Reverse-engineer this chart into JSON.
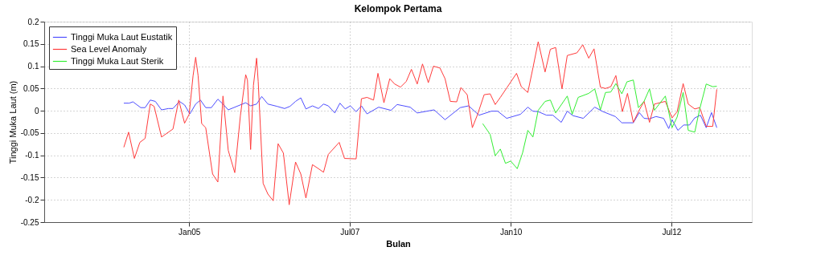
{
  "chart_data": {
    "type": "line",
    "title": "Kelompok Pertama",
    "xlabel": "Bulan",
    "ylabel": "Tinggi Muka Laut (m)",
    "xlim": [
      "2002-10-01",
      "2013-10-01"
    ],
    "xticks": [
      {
        "value": "2005-01-01",
        "label": "Jan05"
      },
      {
        "value": "2007-07-01",
        "label": "Jul07"
      },
      {
        "value": "2010-01-01",
        "label": "Jan10"
      },
      {
        "value": "2012-07-01",
        "label": "Jul12"
      }
    ],
    "ylim": [
      -0.25,
      0.2
    ],
    "yticks": [
      -0.25,
      -0.2,
      -0.15,
      -0.1,
      -0.05,
      0,
      0.05,
      0.1,
      0.15,
      0.2
    ],
    "grid": true,
    "legend": "top left",
    "line_style": "solid",
    "marker": "none",
    "series": [
      {
        "name": "Tinggi Muka Laut Eustatik",
        "color": "#4d4dff",
        "x": [
          "2003-12-27",
          "2004-01-26",
          "2004-02-17",
          "2004-04-01",
          "2004-04-26",
          "2004-05-25",
          "2004-06-23",
          "2004-07-28",
          "2004-09-06",
          "2004-10-01",
          "2004-11-07",
          "2004-12-06",
          "2005-01-05",
          "2005-02-07",
          "2005-03-06",
          "2005-04-05",
          "2005-05-07",
          "2005-06-13",
          "2005-07-12",
          "2005-08-11",
          "2005-09-17",
          "2005-11-18",
          "2005-12-16",
          "2006-01-19",
          "2006-02-17",
          "2006-03-24",
          "2006-05-14",
          "2006-06-27",
          "2006-07-28",
          "2006-08-28",
          "2006-09-27",
          "2006-10-26",
          "2006-12-02",
          "2007-01-05",
          "2007-02-03",
          "2007-03-02",
          "2007-04-08",
          "2007-05-07",
          "2007-06-06",
          "2007-07-05",
          "2007-08-07",
          "2007-09-06",
          "2007-10-08",
          "2007-12-13",
          "2008-02-21",
          "2008-03-27",
          "2008-06-09",
          "2008-07-19",
          "2008-10-23",
          "2008-12-24",
          "2009-03-20",
          "2009-05-07",
          "2009-07-05",
          "2009-09-13",
          "2009-10-19",
          "2009-12-09",
          "2010-02-25",
          "2010-04-08",
          "2010-05-07",
          "2010-06-06",
          "2010-07-23",
          "2010-08-28",
          "2010-10-15",
          "2010-11-18",
          "2010-12-20",
          "2011-02-17",
          "2011-04-23",
          "2011-06-09",
          "2011-08-18",
          "2011-09-24",
          "2011-11-28",
          "2012-01-01",
          "2012-01-28",
          "2012-02-28",
          "2012-04-05",
          "2012-05-18",
          "2012-06-16",
          "2012-07-05",
          "2012-08-07",
          "2012-09-09",
          "2012-10-12",
          "2012-11-11",
          "2012-12-13",
          "2013-01-15",
          "2013-02-14",
          "2013-03-16"
        ],
        "values": [
          0.017,
          0.017,
          0.02,
          0.007,
          0.007,
          0.024,
          0.021,
          0.002,
          0.005,
          0.005,
          0.021,
          0.013,
          -0.007,
          0.015,
          0.024,
          0.007,
          0.007,
          0.026,
          0.015,
          0.002,
          0.008,
          0.018,
          0.011,
          0.015,
          0.032,
          0.015,
          0.01,
          0.005,
          0.01,
          0.021,
          0.029,
          0.004,
          0.011,
          0.005,
          0.015,
          0.011,
          -0.005,
          0.017,
          0.004,
          0.011,
          -0.002,
          0.011,
          -0.007,
          0.008,
          0.001,
          0.014,
          0.008,
          -0.005,
          0.002,
          -0.02,
          0.007,
          0.011,
          -0.01,
          -0.001,
          -0.001,
          -0.017,
          -0.008,
          0.008,
          -0.001,
          -0.002,
          -0.01,
          -0.01,
          -0.026,
          -0.001,
          -0.011,
          -0.017,
          0.008,
          -0.002,
          -0.013,
          -0.027,
          -0.027,
          -0.004,
          -0.017,
          -0.018,
          -0.013,
          -0.017,
          -0.04,
          -0.02,
          -0.044,
          -0.032,
          -0.032,
          -0.016,
          -0.01,
          -0.038,
          -0.004,
          -0.038
        ]
      },
      {
        "name": "Sea Level Anomaly",
        "color": "#ff3b3b",
        "x": [
          "2003-12-27",
          "2004-01-23",
          "2004-02-25",
          "2004-03-27",
          "2004-04-26",
          "2004-05-25",
          "2004-06-16",
          "2004-07-28",
          "2004-10-01",
          "2004-11-03",
          "2004-12-06",
          "2005-01-01",
          "2005-01-23",
          "2005-02-07",
          "2005-02-21",
          "2005-03-13",
          "2005-04-05",
          "2005-05-14",
          "2005-06-13",
          "2005-07-12",
          "2005-08-11",
          "2005-09-17",
          "2005-10-19",
          "2005-11-18",
          "2005-11-28",
          "2005-12-16",
          "2006-01-01",
          "2006-01-19",
          "2006-01-28",
          "2006-02-25",
          "2006-03-24",
          "2006-04-23",
          "2006-05-21",
          "2006-06-20",
          "2006-07-23",
          "2006-08-28",
          "2006-09-27",
          "2006-10-26",
          "2006-12-02",
          "2007-01-05",
          "2007-02-03",
          "2007-03-02",
          "2007-05-03",
          "2007-06-02",
          "2007-08-07",
          "2007-09-06",
          "2007-10-08",
          "2007-11-14",
          "2007-12-09",
          "2008-01-12",
          "2008-02-14",
          "2008-03-13",
          "2008-04-15",
          "2008-05-18",
          "2008-06-16",
          "2008-07-19",
          "2008-08-18",
          "2008-09-20",
          "2008-10-19",
          "2008-11-25",
          "2008-12-24",
          "2009-01-23",
          "2009-02-28",
          "2009-03-24",
          "2009-04-29",
          "2009-05-28",
          "2009-06-27",
          "2009-08-03",
          "2009-09-06",
          "2009-10-05",
          "2009-11-03",
          "2009-12-09",
          "2010-02-03",
          "2010-03-02",
          "2010-04-08",
          "2010-05-07",
          "2010-06-06",
          "2010-07-15",
          "2010-08-14",
          "2010-09-13",
          "2010-10-19",
          "2010-11-18",
          "2011-01-12",
          "2011-02-14",
          "2011-03-20",
          "2011-04-19",
          "2011-05-25",
          "2011-06-23",
          "2011-07-23",
          "2011-08-21",
          "2011-09-27",
          "2011-10-26",
          "2011-11-28",
          "2011-12-27",
          "2012-01-28",
          "2012-02-28",
          "2012-03-27",
          "2012-05-28",
          "2012-07-05",
          "2012-08-03",
          "2012-09-06",
          "2012-10-05",
          "2012-11-11",
          "2012-12-09",
          "2013-01-15",
          "2013-02-21",
          "2013-03-16"
        ],
        "values": [
          -0.082,
          -0.048,
          -0.107,
          -0.071,
          -0.062,
          0.015,
          0.01,
          -0.059,
          -0.041,
          0.024,
          -0.028,
          -0.008,
          0.078,
          0.12,
          0.078,
          -0.029,
          -0.038,
          -0.142,
          -0.16,
          0.033,
          -0.089,
          -0.139,
          -0.011,
          0.081,
          0.069,
          -0.087,
          0.057,
          0.118,
          0.066,
          -0.163,
          -0.187,
          -0.202,
          -0.074,
          -0.095,
          -0.211,
          -0.115,
          -0.142,
          -0.196,
          -0.121,
          -0.13,
          -0.138,
          -0.098,
          -0.071,
          -0.107,
          -0.108,
          0.027,
          0.03,
          0.024,
          0.084,
          0.018,
          0.072,
          0.06,
          0.053,
          0.066,
          0.093,
          0.06,
          0.105,
          0.063,
          0.1,
          0.096,
          0.072,
          0.021,
          0.02,
          0.052,
          0.036,
          -0.038,
          -0.008,
          0.036,
          0.038,
          0.014,
          0.03,
          0.051,
          0.084,
          0.054,
          0.041,
          0.096,
          0.155,
          0.087,
          0.138,
          0.142,
          0.049,
          0.124,
          0.13,
          0.148,
          0.118,
          0.139,
          0.053,
          0.05,
          0.054,
          0.079,
          -0.002,
          0.039,
          -0.026,
          -0.002,
          0.021,
          -0.026,
          0.015,
          0.021,
          -0.016,
          -0.002,
          0.061,
          0.015,
          0.004,
          0.007,
          -0.035,
          -0.035,
          0.048
        ]
      },
      {
        "name": "Tinggi Muka Laut Sterik",
        "color": "#33ee33",
        "x": [
          "2009-07-26",
          "2009-09-06",
          "2009-10-05",
          "2009-11-03",
          "2009-12-02",
          "2010-01-01",
          "2010-02-07",
          "2010-03-09",
          "2010-04-08",
          "2010-05-07",
          "2010-06-06",
          "2010-07-15",
          "2010-08-14",
          "2010-09-13",
          "2010-11-18",
          "2010-12-16",
          "2011-01-19",
          "2011-03-20",
          "2011-04-23",
          "2011-05-25",
          "2011-06-23",
          "2011-07-23",
          "2011-08-21",
          "2011-09-24",
          "2011-10-23",
          "2011-11-28",
          "2011-12-27",
          "2012-01-28",
          "2012-02-28",
          "2012-03-27",
          "2012-05-28",
          "2012-07-05",
          "2012-08-03",
          "2012-09-06",
          "2012-10-05",
          "2012-11-11",
          "2012-12-09",
          "2013-01-15",
          "2013-02-21",
          "2013-03-16"
        ],
        "values": [
          -0.029,
          -0.053,
          -0.101,
          -0.086,
          -0.118,
          -0.113,
          -0.13,
          -0.095,
          -0.044,
          -0.059,
          0.001,
          0.021,
          0.024,
          -0.005,
          0.033,
          -0.008,
          0.03,
          0.039,
          0.049,
          0.002,
          0.041,
          0.042,
          0.061,
          0.038,
          0.065,
          0.069,
          0.007,
          0.021,
          0.049,
          0.001,
          0.033,
          -0.038,
          -0.014,
          0.041,
          -0.044,
          -0.048,
          0.004,
          0.06,
          0.054,
          0.055
        ]
      }
    ]
  }
}
